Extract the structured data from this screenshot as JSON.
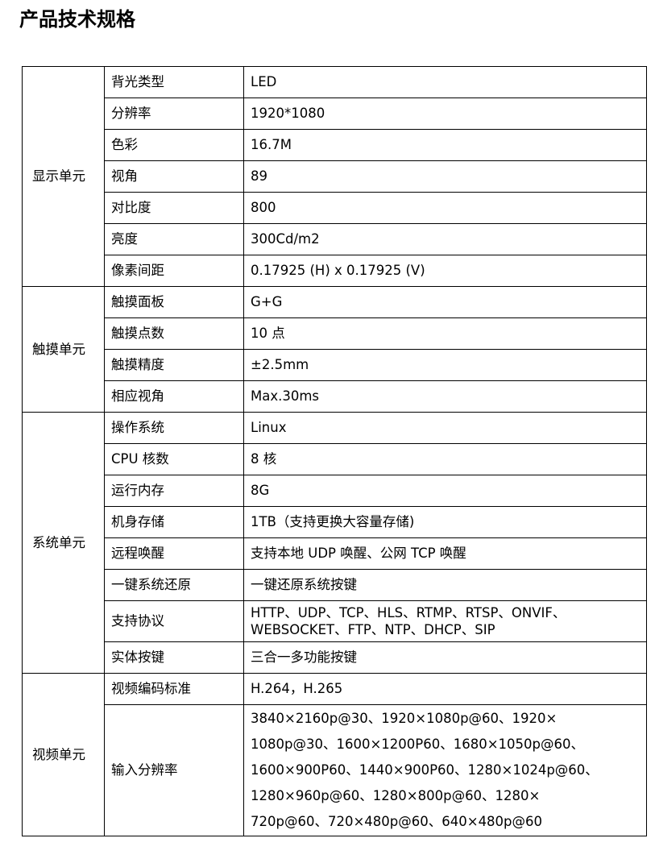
{
  "title": "产品技术规格",
  "groups": [
    {
      "name": "显示单元",
      "rows": [
        {
          "label": "背光类型",
          "value": "LED"
        },
        {
          "label": "分辨率",
          "value": "1920*1080"
        },
        {
          "label": "色彩",
          "value": "16.7M"
        },
        {
          "label": "视角",
          "value": "89"
        },
        {
          "label": "对比度",
          "value": "800"
        },
        {
          "label": "亮度",
          "value": "300Cd/m2"
        },
        {
          "label": "像素间距",
          "value": "0.17925 (H) x 0.17925 (V)"
        }
      ]
    },
    {
      "name": "触摸单元",
      "rows": [
        {
          "label": "触摸面板",
          "value": "G+G"
        },
        {
          "label": "触摸点数",
          "value": "10 点"
        },
        {
          "label": "触摸精度",
          "value": "±2.5mm"
        },
        {
          "label": "相应视角",
          "value": "Max.30ms"
        }
      ]
    },
    {
      "name": "系统单元",
      "rows": [
        {
          "label": "操作系统",
          "value": "Linux"
        },
        {
          "label": "CPU 核数",
          "value": "8 核"
        },
        {
          "label": "运行内存",
          "value": "8G"
        },
        {
          "label": "机身存储",
          "value": "1TB（支持更换大容量存储)"
        },
        {
          "label": "远程唤醒",
          "value": "支持本地 UDP 唤醒、公网 TCP 唤醒"
        },
        {
          "label": "一键系统还原",
          "value": "一键还原系统按键"
        },
        {
          "label": "支持协议",
          "lines": [
            "HTTP、UDP、TCP、HLS、RTMP、RTSP、ONVIF、",
            "WEBSOCKET、FTP、NTP、DHCP、SIP"
          ]
        },
        {
          "label": "实体按键",
          "value": "三合一多功能按键"
        }
      ]
    },
    {
      "name": "视频单元",
      "rows": [
        {
          "label": "视频编码标准",
          "value": "H.264，H.265"
        },
        {
          "label": "输入分辨率",
          "lines": [
            "3840×2160p@30、1920×1080p@60、1920×",
            "1080p@30、1600×1200P60、1680×1050p@60、",
            "1600×900P60、1440×900P60、1280×1024p@60、",
            "1280×960p@60、1280×800p@60、1280×",
            "720p@60、720×480p@60、640×480p@60"
          ]
        }
      ]
    }
  ]
}
